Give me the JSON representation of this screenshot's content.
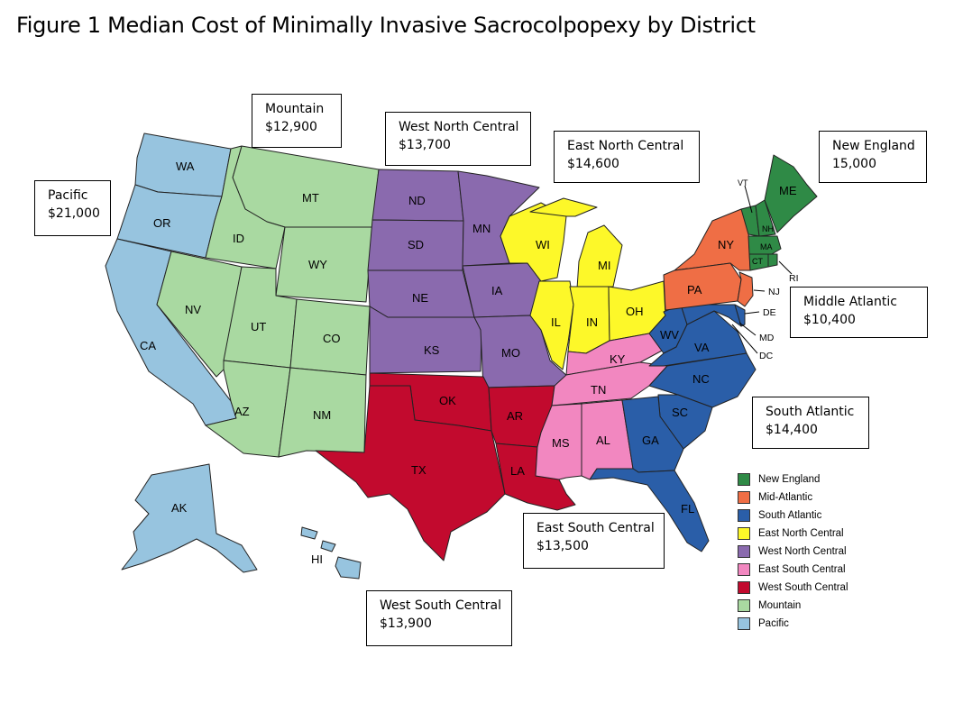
{
  "title": "Figure 1 Median Cost of Minimally Invasive Sacrocolpopexy by District",
  "colors": {
    "new_england": "#2f8a46",
    "mid_atlantic": "#ef6e45",
    "south_atlantic": "#2a5ea8",
    "east_north_central": "#fdf829",
    "west_north_central": "#8a6aae",
    "east_south_central": "#f287c0",
    "west_south_central": "#c20a2e",
    "mountain": "#a9d9a1",
    "pacific": "#97c4df"
  },
  "callouts": {
    "pacific": {
      "name": "Pacific",
      "value": "$21,000"
    },
    "mountain": {
      "name": "Mountain",
      "value": "$12,900"
    },
    "west_north_central": {
      "name": "West North Central",
      "value": "$13,700"
    },
    "east_north_central": {
      "name": "East North Central",
      "value": "$14,600"
    },
    "new_england": {
      "name": "New England",
      "value": "15,000"
    },
    "middle_atlantic": {
      "name": "Middle Atlantic",
      "value": "$10,400"
    },
    "south_atlantic": {
      "name": "South Atlantic",
      "value": "$14,400"
    },
    "east_south_central": {
      "name": "East South Central",
      "value": "$13,500"
    },
    "west_south_central": {
      "name": "West South Central",
      "value": "$13,900"
    }
  },
  "legend": [
    {
      "label": "New England",
      "color": "#2f8a46"
    },
    {
      "label": "Mid-Atlantic",
      "color": "#ef6e45"
    },
    {
      "label": "South Atlantic",
      "color": "#2a5ea8"
    },
    {
      "label": "East North Central",
      "color": "#fdf829"
    },
    {
      "label": "West North Central",
      "color": "#8a6aae"
    },
    {
      "label": "East South Central",
      "color": "#f287c0"
    },
    {
      "label": "West South Central",
      "color": "#c20a2e"
    },
    {
      "label": "Mountain",
      "color": "#a9d9a1"
    },
    {
      "label": "Pacific",
      "color": "#97c4df"
    }
  ],
  "states": {
    "WA": "WA",
    "OR": "OR",
    "CA": "CA",
    "AK": "AK",
    "HI": "HI",
    "MT": "MT",
    "ID": "ID",
    "WY": "WY",
    "NV": "NV",
    "UT": "UT",
    "CO": "CO",
    "AZ": "AZ",
    "NM": "NM",
    "ND": "ND",
    "SD": "SD",
    "NE": "NE",
    "KS": "KS",
    "MN": "MN",
    "IA": "IA",
    "MO": "MO",
    "WI": "WI",
    "MI": "MI",
    "IL": "IL",
    "IN": "IN",
    "OH": "OH",
    "KY": "KY",
    "TN": "TN",
    "MS": "MS",
    "AL": "AL",
    "OK": "OK",
    "TX": "TX",
    "AR": "AR",
    "LA": "LA",
    "WV": "WV",
    "VA": "VA",
    "NC": "NC",
    "SC": "SC",
    "GA": "GA",
    "FL": "FL",
    "MD": "MD",
    "DE": "DE",
    "DC": "DC",
    "NY": "NY",
    "PA": "PA",
    "NJ": "NJ",
    "ME": "ME",
    "VT": "VT",
    "NH": "NH",
    "MA": "MA",
    "CT": "CT",
    "RI": "RI"
  }
}
